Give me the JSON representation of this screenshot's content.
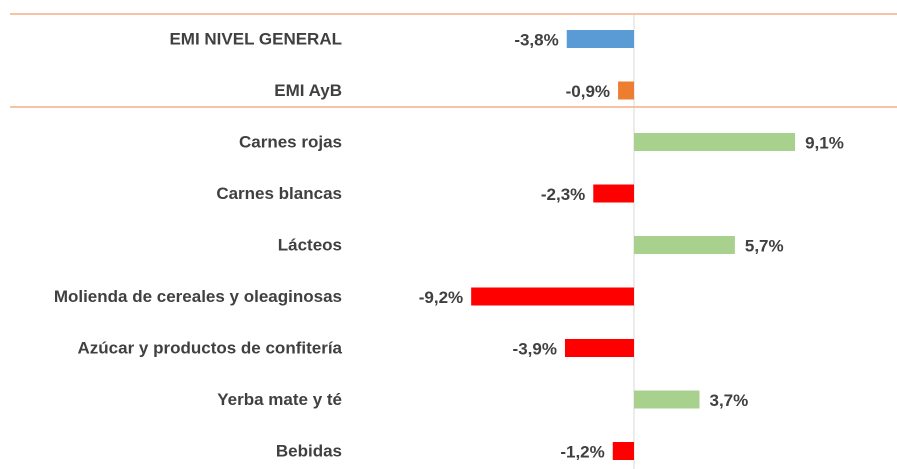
{
  "chart_data": {
    "type": "bar",
    "orientation": "horizontal",
    "categories": [
      "EMI NIVEL GENERAL",
      "EMI AyB",
      "Carnes rojas",
      "Carnes blancas",
      "Lácteos",
      "Molienda de cereales y oleaginosas",
      "Azúcar y productos de confitería",
      "Yerba mate y té",
      "Bebidas"
    ],
    "values": [
      -3.8,
      -0.9,
      9.1,
      -2.3,
      5.7,
      -9.2,
      -3.9,
      3.7,
      -1.2
    ],
    "value_labels": [
      "-3,8%",
      "-0,9%",
      "9,1%",
      "-2,3%",
      "5,7%",
      "-9,2%",
      "-3,9%",
      "3,7%",
      "-1,2%"
    ],
    "colors": [
      "#5b9bd5",
      "#ed7d31",
      "#a9d18e",
      "#ff0000",
      "#a9d18e",
      "#ff0000",
      "#ff0000",
      "#a9d18e",
      "#ff0000"
    ],
    "xlim": [
      -10,
      10
    ]
  }
}
